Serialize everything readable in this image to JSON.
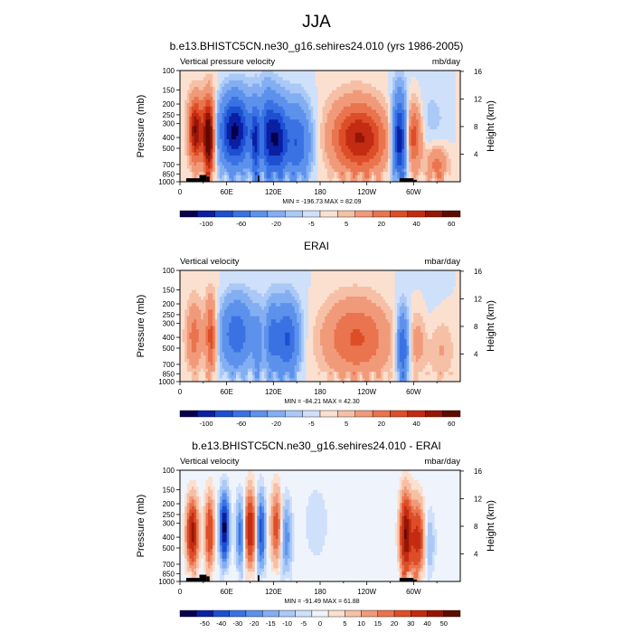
{
  "figure": {
    "title": "JJA"
  },
  "palette": {
    "wide": [
      "#06004d",
      "#0b1fa3",
      "#1d4fd2",
      "#3a72e3",
      "#5c91ec",
      "#83aef2",
      "#aac9f7",
      "#cfe0fa",
      "#fbe0d0",
      "#f6c0a6",
      "#f19a7a",
      "#ea744e",
      "#dd4e28",
      "#c32c12",
      "#951606",
      "#5f0a00"
    ],
    "diff": [
      "#06004d",
      "#0b1fa3",
      "#1d4fd2",
      "#3a72e3",
      "#5c91ec",
      "#83aef2",
      "#aac9f7",
      "#cfe0fa",
      "#eff4fc",
      "#fbe0d0",
      "#f6c0a6",
      "#f19a7a",
      "#ea744e",
      "#dd4e28",
      "#c32c12",
      "#951606",
      "#5f0a00"
    ]
  },
  "chart_data": [
    {
      "type": "heatmap",
      "title": "b.e13.BHISTC5CN.ne30_g16.sehires24.010 (yrs 1986-2005)",
      "left_label": "Vertical pressure velocity",
      "right_label": "mb/day",
      "ylabel": "Pressure (mb)",
      "ylabel_right": "Height (km)",
      "stats": "MIN = -196.73   MAX = 82.09",
      "x_ticks": [
        "0",
        "60E",
        "120E",
        "180",
        "120W",
        "60W"
      ],
      "y_ticks": [
        "100",
        "150",
        "200",
        "250",
        "300",
        "400",
        "500",
        "700",
        "850",
        "1000"
      ],
      "y_ticks_right": [
        "4",
        "8",
        "12",
        "16"
      ],
      "colorbar_labels": [
        "-100",
        "-60",
        "-20",
        "-5",
        "5",
        "20",
        "40",
        "60"
      ],
      "colorbar_palette": "wide",
      "terrain": true
    },
    {
      "type": "heatmap",
      "title": "ERAI",
      "left_label": "Vertical velocity",
      "right_label": "mbar/day",
      "ylabel": "Pressure (mb)",
      "ylabel_right": "Height (km)",
      "stats": "MIN = -84.21   MAX = 42.30",
      "x_ticks": [
        "0",
        "60E",
        "120E",
        "180",
        "120W",
        "60W"
      ],
      "y_ticks": [
        "100",
        "150",
        "200",
        "250",
        "300",
        "400",
        "500",
        "700",
        "850",
        "1000"
      ],
      "y_ticks_right": [
        "4",
        "8",
        "12",
        "16"
      ],
      "colorbar_labels": [
        "-100",
        "-60",
        "-20",
        "-5",
        "5",
        "20",
        "40",
        "60"
      ],
      "colorbar_palette": "wide",
      "terrain": false
    },
    {
      "type": "heatmap",
      "title": "b.e13.BHISTC5CN.ne30_g16.sehires24.010 - ERAI",
      "left_label": "Vertical velocity",
      "right_label": "mbar/day",
      "ylabel": "Pressure (mb)",
      "ylabel_right": "Height (km)",
      "stats": "MIN = -91.49   MAX = 61.88",
      "x_ticks": [
        "0",
        "60E",
        "120E",
        "180",
        "120W",
        "60W"
      ],
      "y_ticks": [
        "100",
        "150",
        "200",
        "250",
        "300",
        "400",
        "500",
        "700",
        "850",
        "1000"
      ],
      "y_ticks_right": [
        "4",
        "8",
        "12",
        "16"
      ],
      "colorbar_labels": [
        "-50",
        "-40",
        "-30",
        "-20",
        "-15",
        "-10",
        "-5",
        "0",
        "5",
        "10",
        "15",
        "20",
        "30",
        "40",
        "50"
      ],
      "colorbar_palette": "diff",
      "terrain": true
    }
  ]
}
